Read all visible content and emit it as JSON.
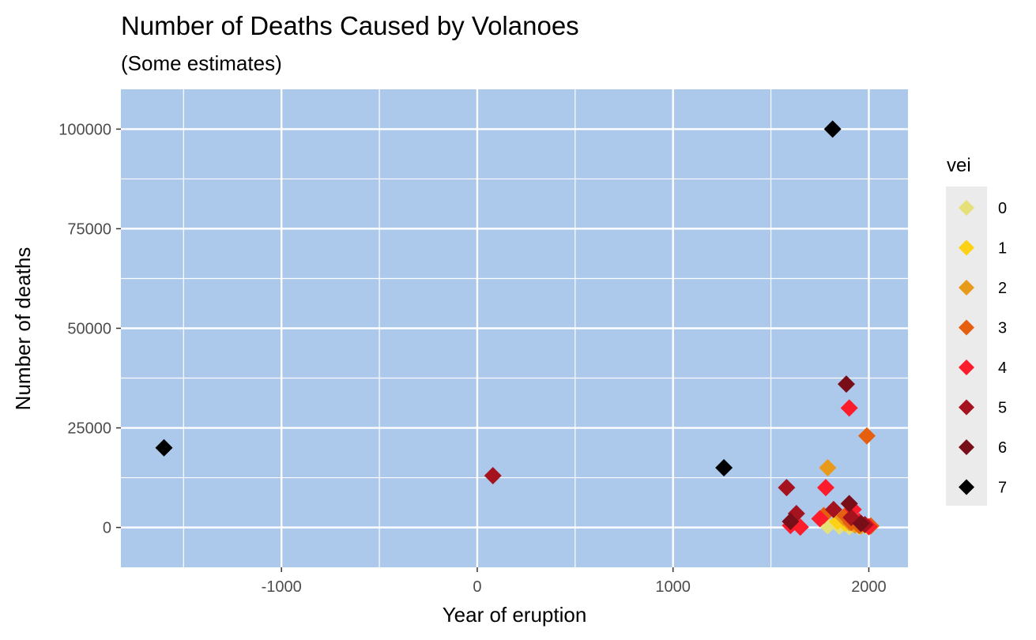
{
  "chart_data": {
    "type": "scatter",
    "title": "Number of Deaths Caused by Volanoes",
    "subtitle": "(Some estimates)",
    "xlabel": "Year of eruption",
    "ylabel": "Number of deaths",
    "xlim": [
      -1820,
      2200
    ],
    "ylim": [
      -10000,
      110000
    ],
    "x_ticks": [
      -1000,
      0,
      1000,
      2000
    ],
    "y_ticks": [
      0,
      25000,
      50000,
      75000,
      100000
    ],
    "x_tick_labels": [
      "-1000",
      "0",
      "1000",
      "2000"
    ],
    "y_tick_labels": [
      "0",
      "25000",
      "50000",
      "75000",
      "100000"
    ],
    "grid": true,
    "panel_background": "#acc8eb",
    "legend": {
      "title": "vei",
      "position": "right",
      "items": [
        {
          "label": "0",
          "color": "#e6e079"
        },
        {
          "label": "1",
          "color": "#fcd116"
        },
        {
          "label": "2",
          "color": "#e89b1a"
        },
        {
          "label": "3",
          "color": "#e65f0f"
        },
        {
          "label": "4",
          "color": "#fc1c2c"
        },
        {
          "label": "5",
          "color": "#a5141e"
        },
        {
          "label": "6",
          "color": "#780f18"
        },
        {
          "label": "7",
          "color": "#000000"
        }
      ]
    },
    "series": [
      {
        "name": "0",
        "points": [
          [
            1790,
            400
          ],
          [
            1850,
            300
          ],
          [
            1900,
            200
          ],
          [
            1950,
            200
          ],
          [
            1985,
            300
          ]
        ]
      },
      {
        "name": "1",
        "points": [
          [
            1840,
            1500
          ],
          [
            1880,
            1000
          ],
          [
            1920,
            800
          ],
          [
            1960,
            500
          ],
          [
            2000,
            200
          ]
        ]
      },
      {
        "name": "2",
        "points": [
          [
            1790,
            15000
          ],
          [
            1870,
            2500
          ],
          [
            1900,
            1200
          ],
          [
            1930,
            600
          ],
          [
            1960,
            400
          ]
        ]
      },
      {
        "name": "3",
        "points": [
          [
            1990,
            23000
          ],
          [
            1770,
            3000
          ],
          [
            1880,
            3000
          ],
          [
            1910,
            1200
          ],
          [
            1950,
            500
          ],
          [
            2010,
            400
          ]
        ]
      },
      {
        "name": "4",
        "points": [
          [
            1900,
            30000
          ],
          [
            1780,
            10000
          ],
          [
            1600,
            500
          ],
          [
            1650,
            100
          ],
          [
            1750,
            2200
          ],
          [
            1920,
            4500
          ],
          [
            1950,
            1500
          ],
          [
            2000,
            200
          ]
        ]
      },
      {
        "name": "5",
        "points": [
          [
            80,
            13000
          ],
          [
            1580,
            10000
          ],
          [
            1630,
            3500
          ],
          [
            1820,
            4500
          ],
          [
            1910,
            2500
          ],
          [
            1980,
            700
          ]
        ]
      },
      {
        "name": "6",
        "points": [
          [
            1885,
            36000
          ],
          [
            1900,
            6000
          ],
          [
            1600,
            1500
          ],
          [
            1960,
            1000
          ]
        ]
      },
      {
        "name": "7",
        "points": [
          [
            -1600,
            20000
          ],
          [
            1260,
            15000
          ],
          [
            1815,
            100000
          ]
        ]
      }
    ]
  }
}
